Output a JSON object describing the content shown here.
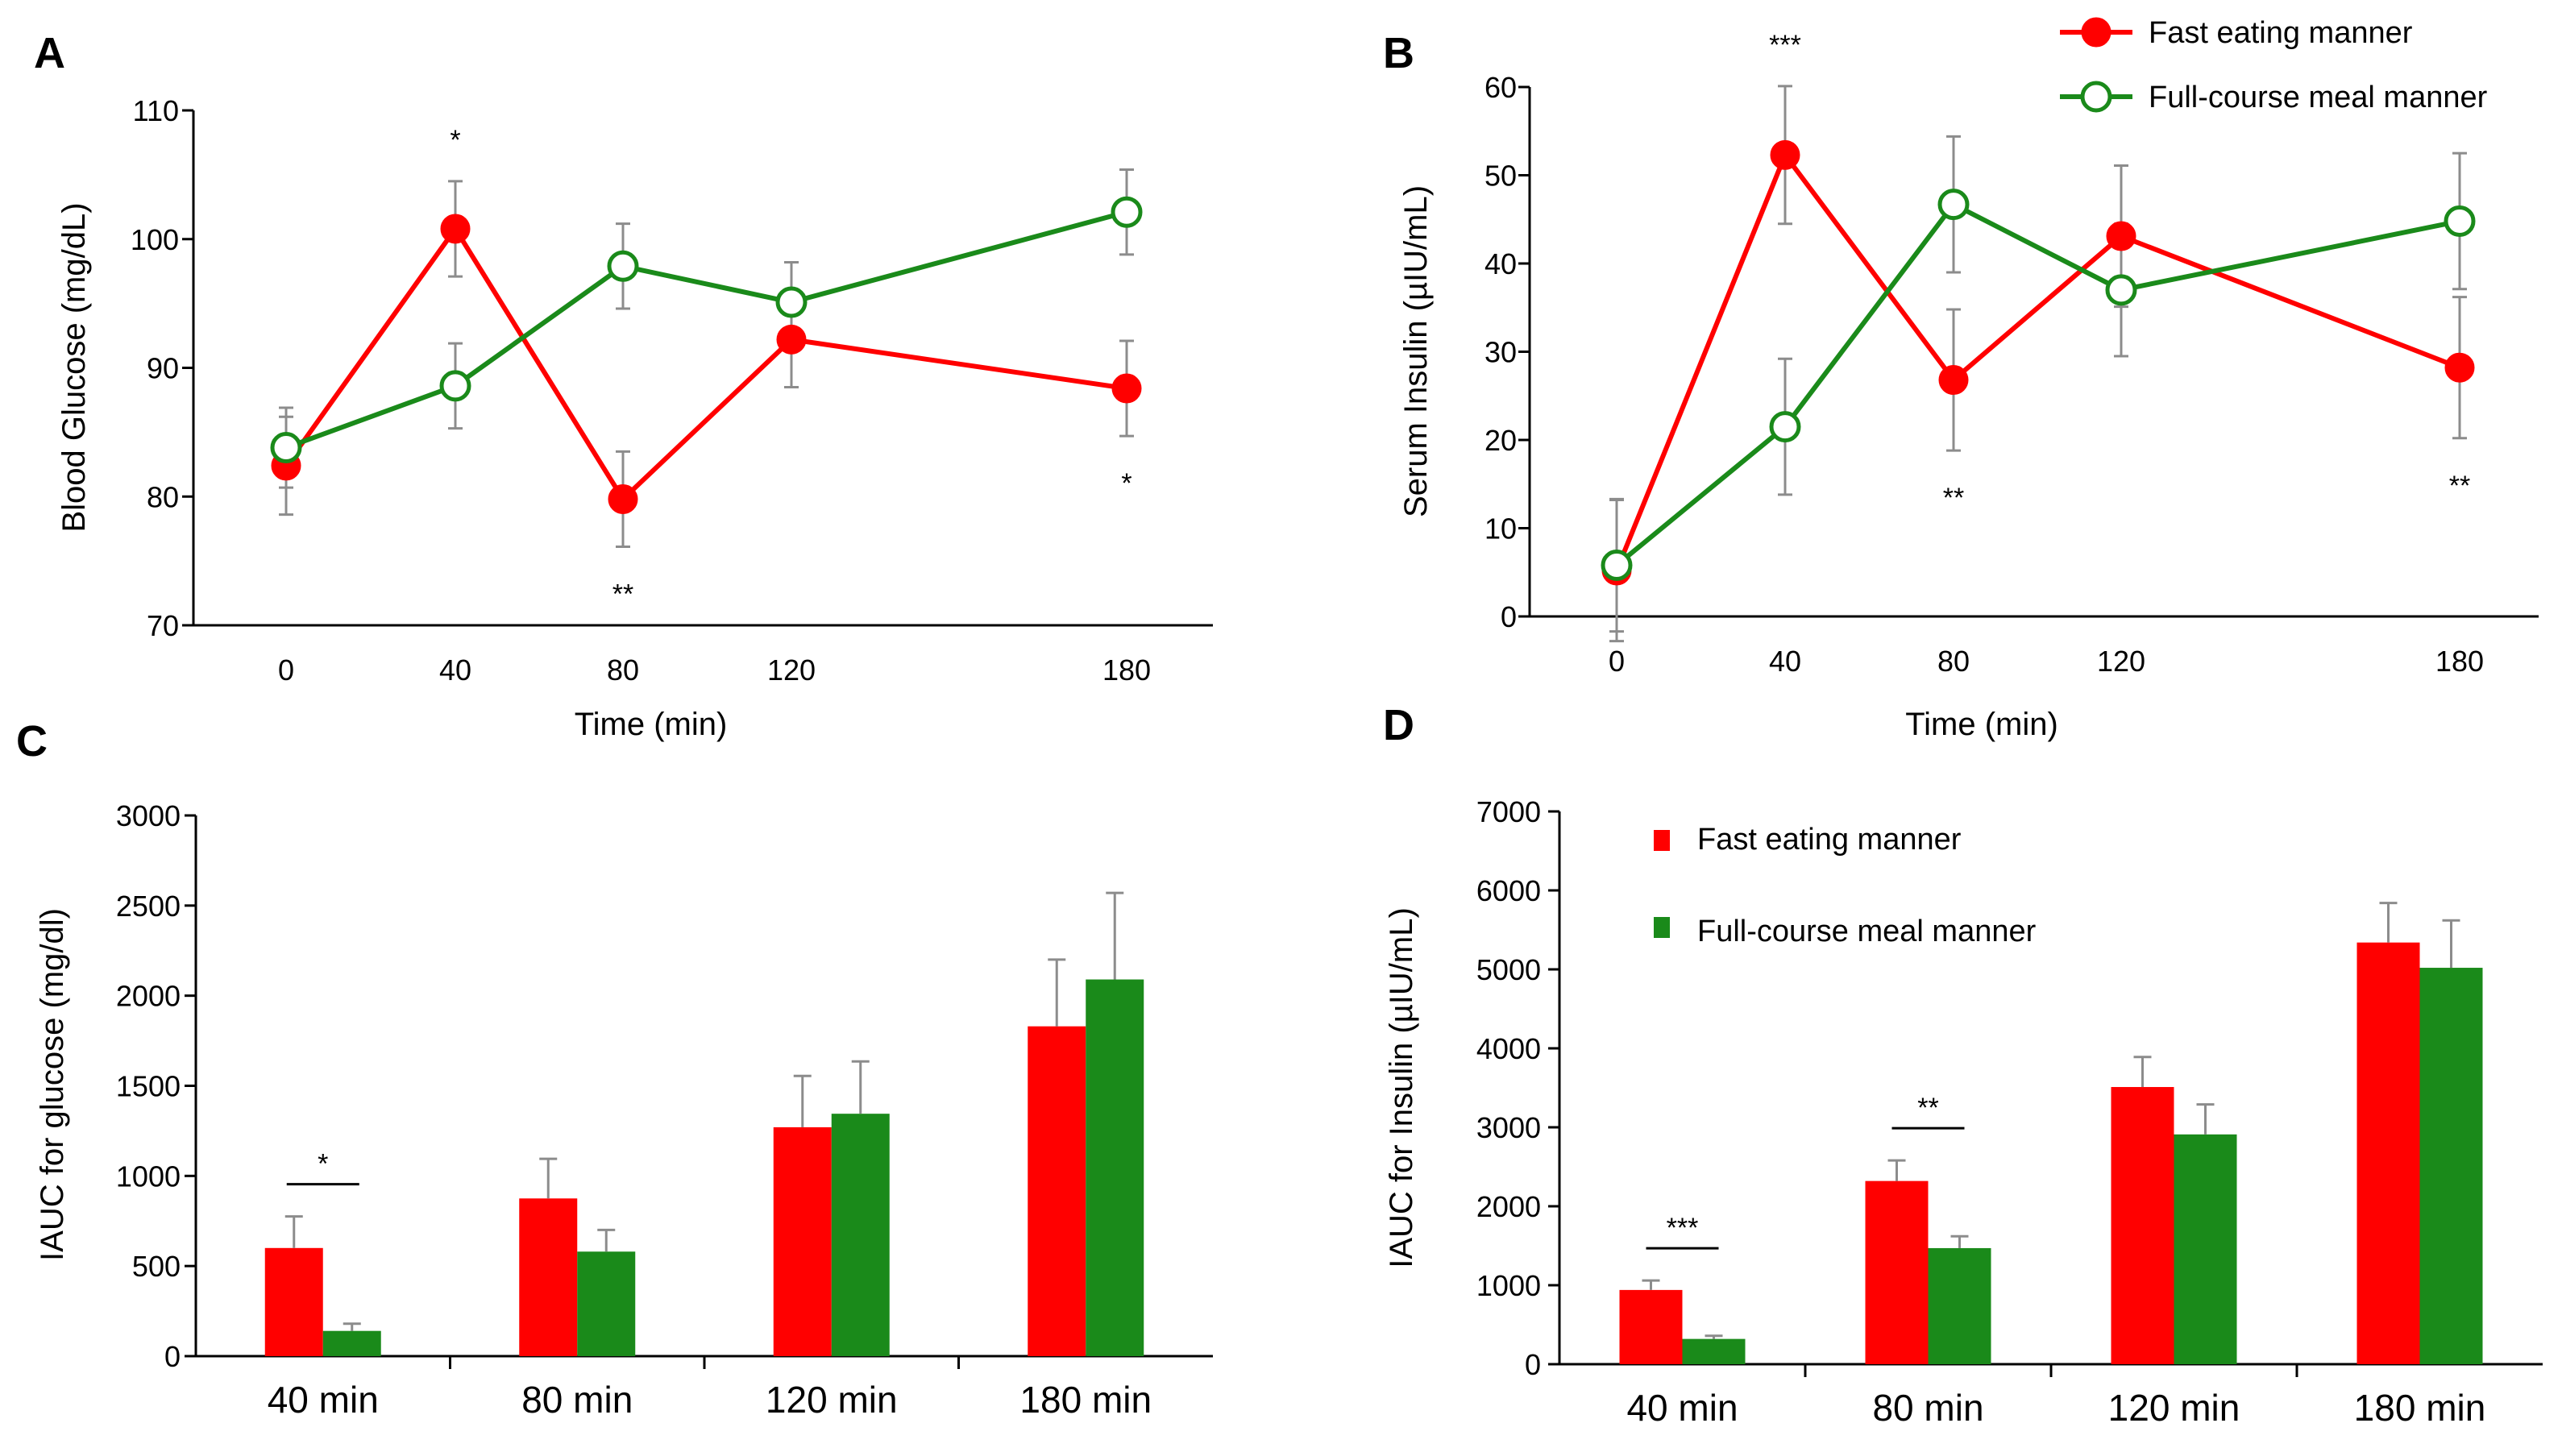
{
  "colors": {
    "fast": "#ff0000",
    "full": "#1a8a1a",
    "axis": "#000000",
    "error": "#8c8c8c"
  },
  "legend": {
    "fast": "Fast eating manner",
    "full": "Full-course meal manner"
  },
  "chart_data": [
    {
      "panel": "A",
      "type": "line",
      "xlabel": "Time (min)",
      "ylabel": "Blood  Glucose (mg/dL)",
      "x": [
        0,
        40,
        80,
        120,
        180
      ],
      "x_ticks": [
        "0",
        "40",
        "80",
        "120",
        "180"
      ],
      "ylim": [
        70,
        110
      ],
      "y_ticks": [
        "70",
        "80",
        "90",
        "100",
        "110"
      ],
      "series": [
        {
          "name": "Fast eating manner",
          "values": [
            82.4,
            100.8,
            79.8,
            92.2,
            88.4
          ],
          "errors": [
            3.8,
            3.7,
            3.7,
            3.7,
            3.7
          ]
        },
        {
          "name": "Full-course meal manner",
          "values": [
            83.8,
            88.6,
            97.9,
            95.1,
            102.1
          ],
          "errors": [
            3.1,
            3.3,
            3.3,
            3.1,
            3.3
          ]
        }
      ],
      "significance": [
        {
          "x": 40,
          "label": "*"
        },
        {
          "x": 80,
          "label": "**"
        },
        {
          "x": 180,
          "label": "*"
        }
      ]
    },
    {
      "panel": "B",
      "type": "line",
      "xlabel": "Time (min)",
      "ylabel": "Serum Insulin (µIU/mL)",
      "x": [
        0,
        40,
        80,
        120,
        180
      ],
      "x_ticks": [
        "0",
        "40",
        "80",
        "120",
        "180"
      ],
      "ylim": [
        0,
        60
      ],
      "y_ticks": [
        "0",
        "10",
        "20",
        "30",
        "40",
        "50",
        "60"
      ],
      "series": [
        {
          "name": "Fast eating manner",
          "values": [
            5.2,
            52.3,
            26.8,
            43.1,
            28.2
          ],
          "errors": [
            8.0,
            7.8,
            8.0,
            8.0,
            8.0
          ]
        },
        {
          "name": "Full-course meal manner",
          "values": [
            5.8,
            21.5,
            46.7,
            37.0,
            44.8
          ],
          "errors": [
            7.5,
            7.7,
            7.7,
            7.5,
            7.7
          ]
        }
      ],
      "significance": [
        {
          "x": 40,
          "label": "***"
        },
        {
          "x": 80,
          "label": "**"
        },
        {
          "x": 180,
          "label": "**"
        }
      ]
    },
    {
      "panel": "C",
      "type": "bar",
      "ylabel": "IAUC for glucose (mg/dl)",
      "categories": [
        "40 min",
        "80 min",
        "120 min",
        "180 min"
      ],
      "ylim": [
        0,
        3000
      ],
      "y_ticks": [
        "0",
        "500",
        "1000",
        "1500",
        "2000",
        "2500",
        "3000"
      ],
      "series": [
        {
          "name": "Fast eating manner",
          "values": [
            600,
            875,
            1270,
            1830
          ],
          "errors": [
            175,
            220,
            285,
            370
          ]
        },
        {
          "name": "Full-course meal manner",
          "values": [
            140,
            580,
            1345,
            2090
          ],
          "errors": [
            40,
            120,
            290,
            480
          ]
        }
      ],
      "significance": [
        {
          "category": "40 min",
          "label": "*"
        }
      ]
    },
    {
      "panel": "D",
      "type": "bar",
      "ylabel": "IAUC for Insulin (µIU/mL)",
      "categories": [
        "40 min",
        "80 min",
        "120 min",
        "180 min"
      ],
      "ylim": [
        0,
        7000
      ],
      "y_ticks": [
        "0",
        "1000",
        "2000",
        "3000",
        "4000",
        "5000",
        "6000",
        "7000"
      ],
      "series": [
        {
          "name": "Fast eating manner",
          "values": [
            940,
            2320,
            3510,
            5340
          ],
          "errors": [
            120,
            260,
            380,
            500
          ]
        },
        {
          "name": "Full-course meal manner",
          "values": [
            320,
            1470,
            2910,
            5020
          ],
          "errors": [
            40,
            150,
            380,
            600
          ]
        }
      ],
      "significance": [
        {
          "category": "40 min",
          "label": "***"
        },
        {
          "category": "80 min",
          "label": "**"
        }
      ]
    }
  ]
}
